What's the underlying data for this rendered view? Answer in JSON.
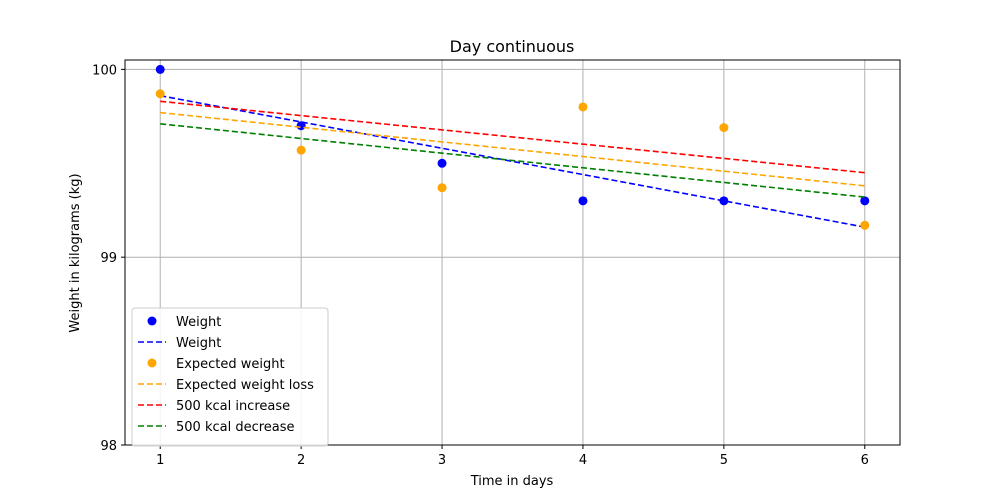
{
  "chart_data": {
    "type": "scatter",
    "title": "Day continuous",
    "xlabel": "Time in days",
    "ylabel": "Weight in kilograms (kg)",
    "xlim": [
      0.75,
      6.25
    ],
    "ylim": [
      98,
      100.05
    ],
    "xticks": [
      1,
      2,
      3,
      4,
      5,
      6
    ],
    "yticks": [
      98,
      99,
      100
    ],
    "grid": true,
    "legend_position": "lower-left",
    "series": [
      {
        "name": "Weight",
        "kind": "scatter",
        "color": "#0000ff",
        "x": [
          1,
          2,
          3,
          4,
          5,
          6
        ],
        "y": [
          100.0,
          99.7,
          99.5,
          99.3,
          99.3,
          99.3
        ]
      },
      {
        "name": "Weight",
        "kind": "dashed-line",
        "color": "#0000ff",
        "x": [
          1,
          6
        ],
        "y": [
          99.86,
          99.16
        ]
      },
      {
        "name": "Expected weight",
        "kind": "scatter",
        "color": "#ffa500",
        "x": [
          1,
          2,
          3,
          4,
          5,
          6
        ],
        "y": [
          99.87,
          99.57,
          99.37,
          99.8,
          99.69,
          99.17
        ]
      },
      {
        "name": "Expected weight loss",
        "kind": "dashed-line",
        "color": "#ffa500",
        "x": [
          1,
          6
        ],
        "y": [
          99.77,
          99.38
        ]
      },
      {
        "name": "500 kcal increase",
        "kind": "dashed-line",
        "color": "#ff0000",
        "x": [
          1,
          6
        ],
        "y": [
          99.83,
          99.45
        ]
      },
      {
        "name": "500 kcal decrease",
        "kind": "dashed-line",
        "color": "#008000",
        "x": [
          1,
          6
        ],
        "y": [
          99.71,
          99.32
        ]
      }
    ]
  }
}
